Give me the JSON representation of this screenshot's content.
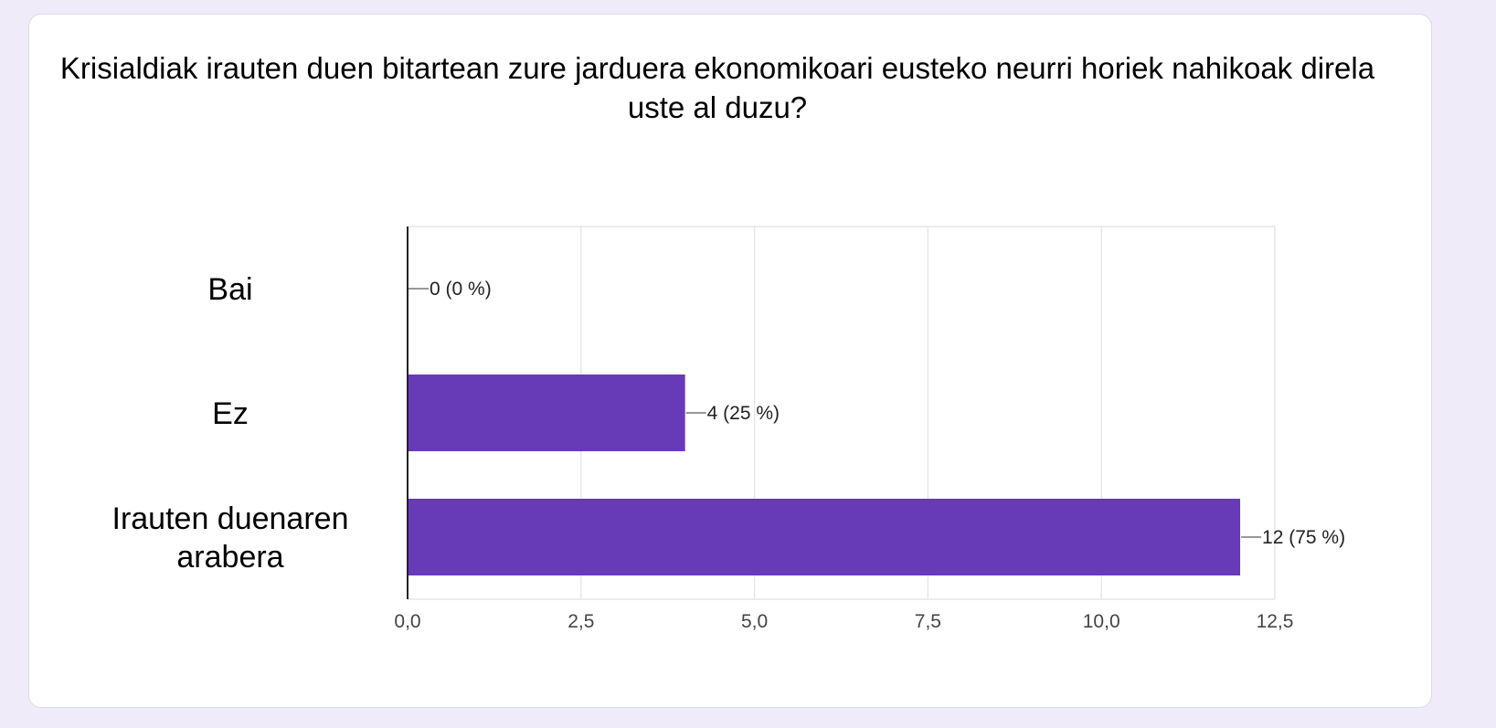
{
  "chart_data": {
    "type": "bar",
    "orientation": "horizontal",
    "title": "Krisialdiak irauten duen bitartean zure jarduera ekonomikoari eusteko neurri horiek nahikoak direla uste al duzu?",
    "categories": [
      "Bai",
      "Ez",
      "Irauten duenaren arabera"
    ],
    "category_lines": [
      [
        "Bai"
      ],
      [
        "Ez"
      ],
      [
        "Irauten duenaren",
        "arabera"
      ]
    ],
    "values": [
      0,
      4,
      12
    ],
    "data_labels": [
      "0 (0 %)",
      "4 (25 %)",
      "12 (75 %)"
    ],
    "xlim": [
      0,
      12.5
    ],
    "ticks": [
      0,
      2.5,
      5,
      7.5,
      10,
      12.5
    ],
    "tick_labels": [
      "0,0",
      "2,5",
      "5,0",
      "7,5",
      "10,0",
      "12,5"
    ],
    "grid": true,
    "bar_color": "#673ab7"
  }
}
